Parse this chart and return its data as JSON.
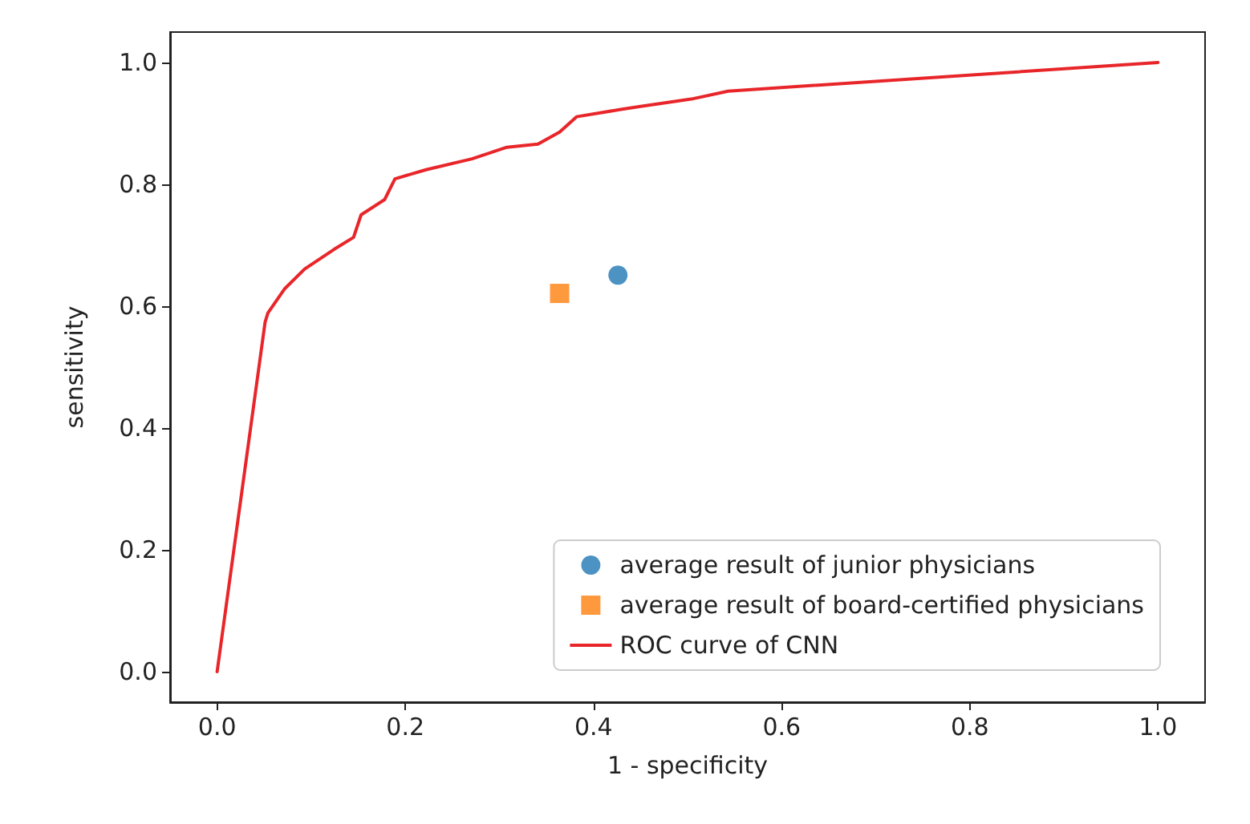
{
  "chart_data": {
    "type": "line",
    "xlabel": "1 - specificity",
    "ylabel": "sensitivity",
    "xlim": [
      -0.05,
      1.05
    ],
    "ylim": [
      -0.05,
      1.05
    ],
    "xticks": [
      {
        "value": 0,
        "label": "0.0"
      },
      {
        "value": 0.2,
        "label": "0.2"
      },
      {
        "value": 0.4,
        "label": "0.4"
      },
      {
        "value": 0.6,
        "label": "0.6"
      },
      {
        "value": 0.8,
        "label": "0.8"
      },
      {
        "value": 1,
        "label": "1.0"
      }
    ],
    "yticks": [
      {
        "value": 0,
        "label": "0.0"
      },
      {
        "value": 0.2,
        "label": "0.2"
      },
      {
        "value": 0.4,
        "label": "0.4"
      },
      {
        "value": 0.6,
        "label": "0.6"
      },
      {
        "value": 0.8,
        "label": "0.8"
      },
      {
        "value": 1,
        "label": "1.0"
      }
    ],
    "grid": false,
    "legend": "bottom right",
    "series": [
      {
        "name": "average result of junior physicians",
        "type": "scatter",
        "marker": "circle",
        "color": "#1f77b4",
        "x": [
          0.426
        ],
        "values": [
          0.651
        ]
      },
      {
        "name": "average result of board-certified physicians",
        "type": "scatter",
        "marker": "square",
        "color": "#ff7f0e",
        "x": [
          0.364
        ],
        "values": [
          0.621
        ]
      },
      {
        "name": "ROC curve of CNN",
        "marker": "none",
        "line_style": "solid",
        "color": "#e8262a",
        "x": [
          0,
          0.051,
          0.054,
          0.072,
          0.093,
          0.124,
          0.145,
          0.153,
          0.178,
          0.189,
          0.222,
          0.271,
          0.308,
          0.341,
          0.364,
          0.382,
          0.429,
          0.45,
          0.504,
          0.543,
          1
        ],
        "values": [
          0,
          0.574,
          0.589,
          0.629,
          0.661,
          0.693,
          0.713,
          0.75,
          0.775,
          0.809,
          0.824,
          0.842,
          0.861,
          0.866,
          0.886,
          0.911,
          0.923,
          0.928,
          0.94,
          0.953,
          1
        ]
      }
    ]
  }
}
